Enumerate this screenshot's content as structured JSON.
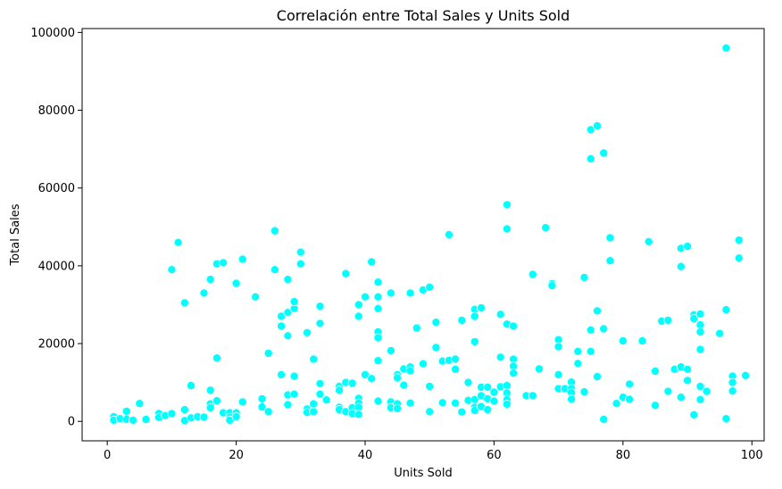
{
  "chart_data": {
    "type": "scatter",
    "title": "Correlación entre Total Sales y Units Sold",
    "xlabel": "Units Sold",
    "ylabel": "Total Sales",
    "xlim": [
      -3.9,
      101.9
    ],
    "ylim": [
      -5000,
      101000
    ],
    "xticks": [
      0,
      20,
      40,
      60,
      80,
      100
    ],
    "yticks": [
      0,
      20000,
      40000,
      60000,
      80000,
      100000
    ],
    "grid": false,
    "point_color": "#00ffff",
    "point_edge_color": "#ffffff",
    "points": [
      [
        1,
        1200
      ],
      [
        1,
        300
      ],
      [
        2,
        700
      ],
      [
        3,
        2600
      ],
      [
        3,
        500
      ],
      [
        4,
        300
      ],
      [
        5,
        4600
      ],
      [
        6,
        500
      ],
      [
        8,
        2000
      ],
      [
        8,
        1000
      ],
      [
        9,
        1500
      ],
      [
        10,
        2000
      ],
      [
        10,
        39000
      ],
      [
        11,
        46000
      ],
      [
        12,
        30500
      ],
      [
        12,
        3000
      ],
      [
        12,
        200
      ],
      [
        13,
        9200
      ],
      [
        13,
        900
      ],
      [
        14,
        1200
      ],
      [
        15,
        1100
      ],
      [
        15,
        33000
      ],
      [
        16,
        36500
      ],
      [
        16,
        8000
      ],
      [
        16,
        4500
      ],
      [
        16,
        3500
      ],
      [
        17,
        5300
      ],
      [
        17,
        16300
      ],
      [
        17,
        40500
      ],
      [
        18,
        40800
      ],
      [
        18,
        2200
      ],
      [
        19,
        2200
      ],
      [
        19,
        1000
      ],
      [
        19,
        300
      ],
      [
        20,
        2200
      ],
      [
        20,
        35500
      ],
      [
        20,
        1200
      ],
      [
        21,
        41700
      ],
      [
        21,
        5000
      ],
      [
        23,
        32000
      ],
      [
        24,
        3700
      ],
      [
        24,
        5800
      ],
      [
        25,
        2500
      ],
      [
        25,
        17500
      ],
      [
        26,
        49000
      ],
      [
        26,
        39000
      ],
      [
        27,
        27000
      ],
      [
        27,
        24500
      ],
      [
        27,
        12000
      ],
      [
        28,
        22000
      ],
      [
        28,
        28000
      ],
      [
        28,
        36500
      ],
      [
        28,
        6800
      ],
      [
        28,
        4300
      ],
      [
        29,
        29000
      ],
      [
        29,
        30800
      ],
      [
        29,
        7000
      ],
      [
        29,
        11600
      ],
      [
        30,
        40500
      ],
      [
        30,
        43500
      ],
      [
        31,
        22800
      ],
      [
        31,
        3200
      ],
      [
        31,
        2300
      ],
      [
        32,
        2500
      ],
      [
        32,
        16000
      ],
      [
        32,
        4500
      ],
      [
        33,
        29600
      ],
      [
        33,
        25200
      ],
      [
        33,
        9700
      ],
      [
        33,
        7000
      ],
      [
        34,
        5500
      ],
      [
        36,
        9000
      ],
      [
        36,
        8000
      ],
      [
        36,
        3600
      ],
      [
        36,
        3000
      ],
      [
        37,
        38000
      ],
      [
        37,
        10000
      ],
      [
        37,
        2500
      ],
      [
        38,
        9800
      ],
      [
        38,
        3500
      ],
      [
        38,
        2000
      ],
      [
        39,
        30000
      ],
      [
        39,
        27000
      ],
      [
        39,
        5900
      ],
      [
        39,
        4700
      ],
      [
        39,
        3600
      ],
      [
        39,
        1800
      ],
      [
        40,
        32000
      ],
      [
        40,
        12000
      ],
      [
        41,
        41000
      ],
      [
        41,
        11000
      ],
      [
        42,
        35800
      ],
      [
        42,
        32000
      ],
      [
        42,
        29000
      ],
      [
        42,
        23000
      ],
      [
        42,
        21500
      ],
      [
        42,
        15600
      ],
      [
        42,
        5200
      ],
      [
        44,
        33000
      ],
      [
        44,
        18200
      ],
      [
        44,
        5000
      ],
      [
        44,
        3500
      ],
      [
        45,
        12000
      ],
      [
        45,
        11200
      ],
      [
        45,
        4500
      ],
      [
        45,
        3300
      ],
      [
        46,
        13500
      ],
      [
        46,
        9300
      ],
      [
        47,
        33000
      ],
      [
        47,
        14000
      ],
      [
        47,
        13000
      ],
      [
        47,
        4700
      ],
      [
        48,
        24000
      ],
      [
        49,
        14800
      ],
      [
        49,
        33800
      ],
      [
        50,
        34500
      ],
      [
        50,
        9000
      ],
      [
        50,
        2500
      ],
      [
        51,
        25500
      ],
      [
        51,
        19000
      ],
      [
        52,
        15500
      ],
      [
        52,
        4800
      ],
      [
        53,
        48000
      ],
      [
        53,
        15700
      ],
      [
        54,
        16000
      ],
      [
        54,
        13400
      ],
      [
        54,
        4700
      ],
      [
        55,
        26000
      ],
      [
        55,
        2400
      ],
      [
        56,
        10000
      ],
      [
        56,
        5400
      ],
      [
        57,
        28800
      ],
      [
        57,
        27000
      ],
      [
        57,
        20500
      ],
      [
        57,
        5600
      ],
      [
        57,
        3600
      ],
      [
        57,
        2800
      ],
      [
        58,
        29200
      ],
      [
        58,
        8800
      ],
      [
        58,
        6600
      ],
      [
        58,
        3800
      ],
      [
        59,
        8800
      ],
      [
        59,
        5800
      ],
      [
        59,
        3000
      ],
      [
        60,
        7500
      ],
      [
        60,
        5200
      ],
      [
        61,
        27500
      ],
      [
        61,
        16500
      ],
      [
        61,
        8900
      ],
      [
        62,
        55700
      ],
      [
        62,
        49500
      ],
      [
        62,
        25000
      ],
      [
        62,
        9200
      ],
      [
        62,
        7300
      ],
      [
        62,
        5600
      ],
      [
        62,
        4400
      ],
      [
        63,
        24500
      ],
      [
        63,
        16000
      ],
      [
        63,
        14200
      ],
      [
        63,
        12400
      ],
      [
        65,
        6600
      ],
      [
        66,
        37800
      ],
      [
        66,
        6600
      ],
      [
        67,
        13500
      ],
      [
        68,
        49800
      ],
      [
        69,
        35400
      ],
      [
        69,
        34900
      ],
      [
        70,
        21000
      ],
      [
        70,
        19200
      ],
      [
        70,
        12000
      ],
      [
        70,
        8400
      ],
      [
        71,
        8400
      ],
      [
        72,
        10100
      ],
      [
        72,
        8400
      ],
      [
        72,
        7400
      ],
      [
        72,
        5700
      ],
      [
        73,
        18000
      ],
      [
        73,
        14900
      ],
      [
        74,
        37000
      ],
      [
        74,
        7600
      ],
      [
        75,
        75000
      ],
      [
        75,
        67500
      ],
      [
        75,
        23500
      ],
      [
        75,
        18000
      ],
      [
        76,
        76000
      ],
      [
        76,
        28400
      ],
      [
        76,
        11500
      ],
      [
        77,
        69000
      ],
      [
        77,
        23800
      ],
      [
        77,
        500
      ],
      [
        78,
        47200
      ],
      [
        78,
        41300
      ],
      [
        79,
        4600
      ],
      [
        80,
        20700
      ],
      [
        80,
        6200
      ],
      [
        81,
        9600
      ],
      [
        81,
        5700
      ],
      [
        83,
        20700
      ],
      [
        84,
        46200
      ],
      [
        85,
        12900
      ],
      [
        85,
        4100
      ],
      [
        86,
        25800
      ],
      [
        87,
        26000
      ],
      [
        87,
        7700
      ],
      [
        88,
        13400
      ],
      [
        89,
        44500
      ],
      [
        89,
        39800
      ],
      [
        89,
        14000
      ],
      [
        89,
        6200
      ],
      [
        90,
        45000
      ],
      [
        90,
        13400
      ],
      [
        90,
        10500
      ],
      [
        91,
        27400
      ],
      [
        91,
        26400
      ],
      [
        91,
        1700
      ],
      [
        92,
        27600
      ],
      [
        92,
        24800
      ],
      [
        92,
        23000
      ],
      [
        92,
        18500
      ],
      [
        92,
        9000
      ],
      [
        92,
        5600
      ],
      [
        93,
        7700
      ],
      [
        95,
        22600
      ],
      [
        96,
        96000
      ],
      [
        96,
        28700
      ],
      [
        96,
        700
      ],
      [
        97,
        11600
      ],
      [
        97,
        10000
      ],
      [
        97,
        7800
      ],
      [
        98,
        46600
      ],
      [
        98,
        42000
      ],
      [
        99,
        11800
      ]
    ]
  }
}
